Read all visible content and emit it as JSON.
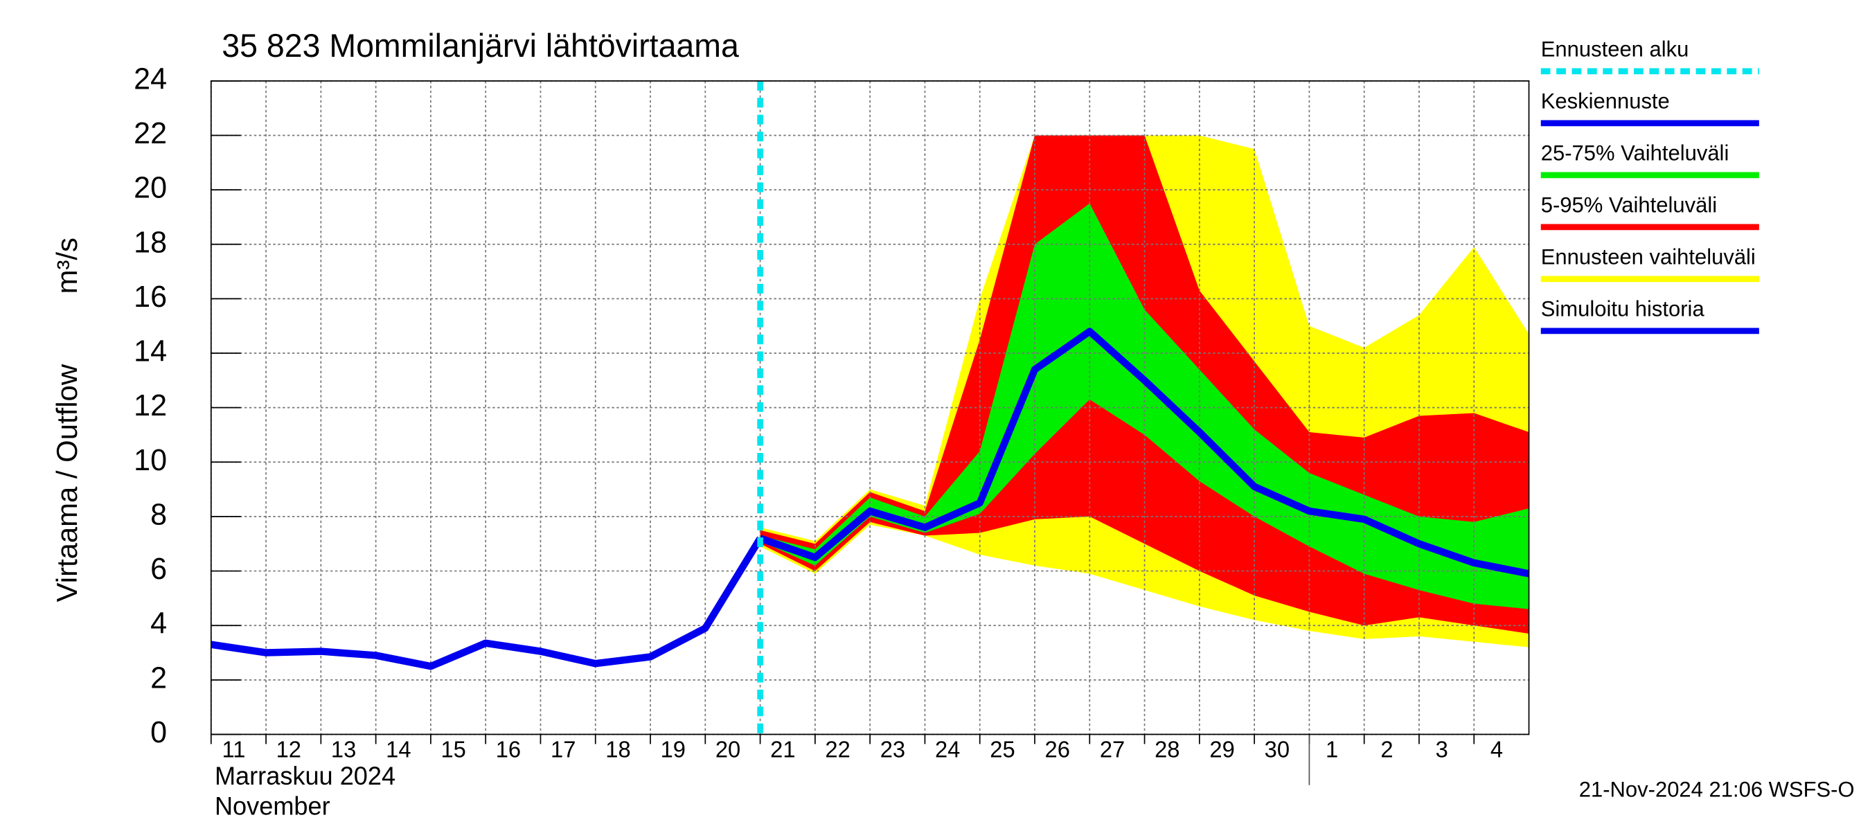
{
  "chart_data": {
    "type": "forecast-band",
    "title": "35 823 Mommilanjärvi lähtövirtaama",
    "y_label": "Virtaama / Outflow",
    "y_unit": "m³/s",
    "month_label": "Marraskuu 2024",
    "month_label_en": "November",
    "footer": "21-Nov-2024 21:06 WSFS-O",
    "xlim": [
      "2024-11-11",
      "2024-12-05"
    ],
    "xticks": [
      {
        "value": "2024-11-11",
        "label": "11"
      },
      {
        "value": "2024-11-12",
        "label": "12"
      },
      {
        "value": "2024-11-13",
        "label": "13"
      },
      {
        "value": "2024-11-14",
        "label": "14"
      },
      {
        "value": "2024-11-15",
        "label": "15"
      },
      {
        "value": "2024-11-16",
        "label": "16"
      },
      {
        "value": "2024-11-17",
        "label": "17"
      },
      {
        "value": "2024-11-18",
        "label": "18"
      },
      {
        "value": "2024-11-19",
        "label": "19"
      },
      {
        "value": "2024-11-20",
        "label": "20"
      },
      {
        "value": "2024-11-21",
        "label": "21"
      },
      {
        "value": "2024-11-22",
        "label": "22"
      },
      {
        "value": "2024-11-23",
        "label": "23"
      },
      {
        "value": "2024-11-24",
        "label": "24"
      },
      {
        "value": "2024-11-25",
        "label": "25"
      },
      {
        "value": "2024-11-26",
        "label": "26"
      },
      {
        "value": "2024-11-27",
        "label": "27"
      },
      {
        "value": "2024-11-28",
        "label": "28"
      },
      {
        "value": "2024-11-29",
        "label": "29"
      },
      {
        "value": "2024-11-30",
        "label": "30"
      },
      {
        "value": "2024-12-01",
        "label": "1"
      },
      {
        "value": "2024-12-02",
        "label": "2"
      },
      {
        "value": "2024-12-03",
        "label": "3"
      },
      {
        "value": "2024-12-04",
        "label": "4"
      }
    ],
    "month_break": "2024-12-01",
    "ylim": [
      0,
      24
    ],
    "yticks": [
      0,
      2,
      4,
      6,
      8,
      10,
      12,
      14,
      16,
      18,
      20,
      22,
      24
    ],
    "grid": true,
    "forecast_start": {
      "name": "Ennusteen alku",
      "color": "#00e5ee",
      "x": "2024-11-21"
    },
    "history": {
      "name": "Simuloitu historia",
      "color": "#0000ee",
      "x": [
        "2024-11-11",
        "2024-11-12",
        "2024-11-13",
        "2024-11-14",
        "2024-11-15",
        "2024-11-16",
        "2024-11-17",
        "2024-11-18",
        "2024-11-19",
        "2024-11-20",
        "2024-11-21"
      ],
      "values": [
        3.3,
        3.0,
        3.05,
        2.9,
        2.5,
        3.35,
        3.05,
        2.6,
        2.85,
        3.9,
        7.2
      ]
    },
    "forecast_x": [
      "2024-11-21",
      "2024-11-22",
      "2024-11-23",
      "2024-11-24",
      "2024-11-25",
      "2024-11-26",
      "2024-11-27",
      "2024-11-28",
      "2024-11-29",
      "2024-11-30",
      "2024-12-01",
      "2024-12-02",
      "2024-12-03",
      "2024-12-04",
      "2024-12-05"
    ],
    "bands": [
      {
        "name": "Ennusteen vaihteluväli",
        "color": "#ffff00",
        "upper": [
          7.6,
          7.1,
          9.0,
          8.4,
          16.0,
          22,
          22,
          22,
          22,
          21.5,
          15.0,
          14.2,
          15.4,
          17.9,
          14.7
        ],
        "lower": [
          6.9,
          5.9,
          7.7,
          7.3,
          6.6,
          6.2,
          5.9,
          5.3,
          4.7,
          4.2,
          3.8,
          3.5,
          3.6,
          3.4,
          3.2
        ]
      },
      {
        "name": "5-95% Vaihteluväli",
        "color": "#ff0000",
        "upper": [
          7.5,
          7.0,
          8.9,
          8.2,
          14.5,
          22,
          22,
          22,
          16.3,
          13.7,
          11.1,
          10.9,
          11.7,
          11.8,
          11.1
        ],
        "lower": [
          7.0,
          6.0,
          7.8,
          7.3,
          7.4,
          7.9,
          8.0,
          7.0,
          6.0,
          5.1,
          4.5,
          4.0,
          4.3,
          4.0,
          3.7
        ]
      },
      {
        "name": "25-75% Vaihteluväli",
        "color": "#00ee00",
        "upper": [
          7.3,
          6.8,
          8.7,
          8.0,
          10.4,
          18.0,
          19.5,
          15.6,
          13.4,
          11.2,
          9.6,
          8.8,
          8.0,
          7.8,
          8.3
        ],
        "lower": [
          7.1,
          6.2,
          8.0,
          7.4,
          8.1,
          10.3,
          12.3,
          11.0,
          9.3,
          8.0,
          6.9,
          5.9,
          5.3,
          4.8,
          4.6
        ]
      }
    ],
    "mean": {
      "name": "Keskiennuste",
      "color": "#0000ee",
      "values": [
        7.2,
        6.5,
        8.2,
        7.6,
        8.5,
        13.4,
        14.8,
        13.0,
        11.1,
        9.1,
        8.2,
        7.9,
        7.0,
        6.3,
        5.9
      ]
    }
  }
}
